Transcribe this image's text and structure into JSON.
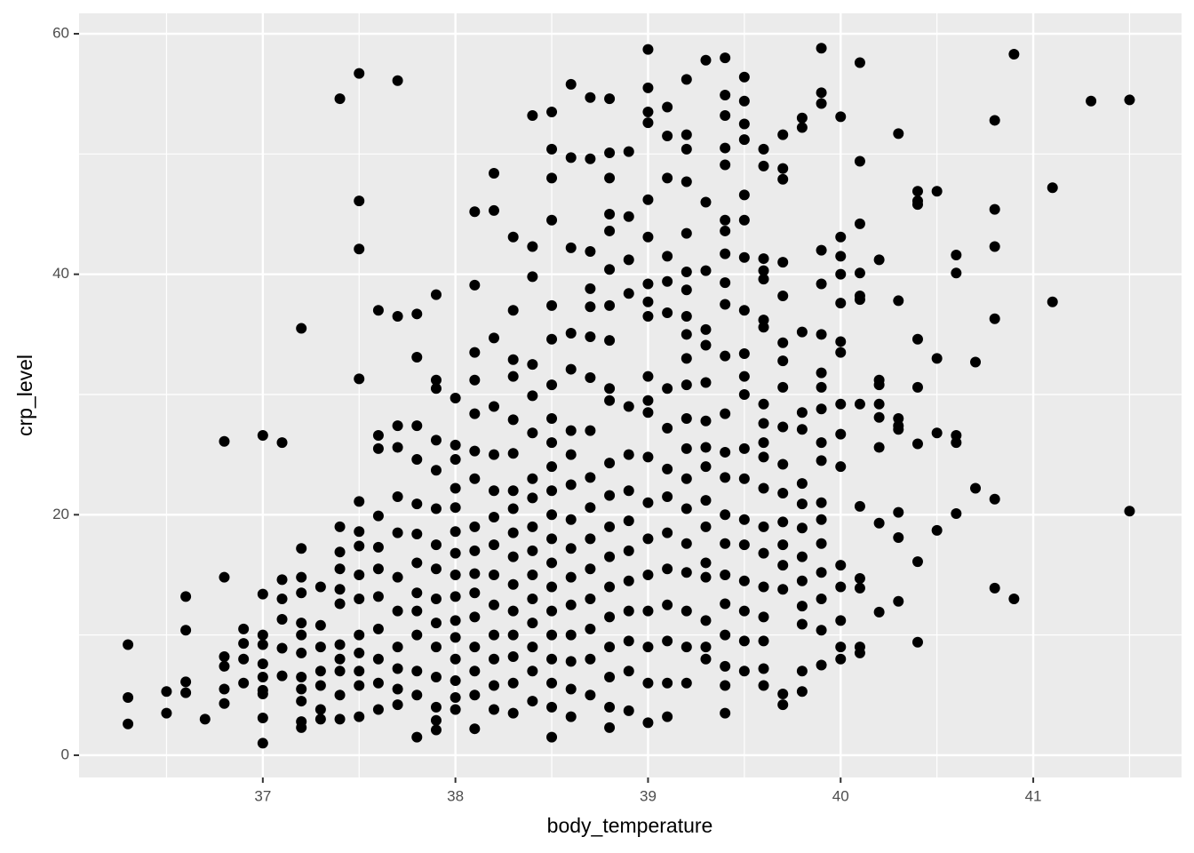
{
  "chart_data": {
    "type": "scatter",
    "xlabel": "body_temperature",
    "ylabel": "crp_level",
    "xlim": [
      36.046,
      41.77
    ],
    "ylim": [
      -1.85,
      61.7
    ],
    "xticks": [
      37,
      38,
      39,
      40,
      41
    ],
    "yticks": [
      0,
      20,
      40,
      60
    ],
    "grid": true,
    "color": "#000000",
    "x": [
      36.3,
      36.3,
      36.3,
      36.5,
      36.5,
      36.6,
      36.6,
      36.6,
      36.6,
      36.7,
      36.8,
      36.8,
      36.8,
      36.8,
      36.8,
      36.8,
      36.9,
      36.9,
      36.9,
      36.9,
      37.0,
      37.0,
      37.0,
      37.0,
      37.0,
      37.0,
      37.0,
      37.0,
      37.0,
      37.0,
      37.1,
      37.1,
      37.1,
      37.1,
      37.1,
      37.1,
      37.2,
      37.2,
      37.2,
      37.2,
      37.2,
      37.2,
      37.2,
      37.2,
      37.2,
      37.2,
      37.2,
      37.2,
      37.3,
      37.3,
      37.3,
      37.3,
      37.3,
      37.3,
      37.3,
      37.4,
      37.4,
      37.4,
      37.4,
      37.4,
      37.4,
      37.4,
      37.4,
      37.4,
      37.4,
      37.4,
      37.5,
      37.5,
      37.5,
      37.5,
      37.5,
      37.5,
      37.5,
      37.5,
      37.5,
      37.5,
      37.5,
      37.5,
      37.5,
      37.5,
      37.6,
      37.6,
      37.6,
      37.6,
      37.6,
      37.6,
      37.6,
      37.6,
      37.6,
      37.6,
      37.6,
      37.7,
      37.7,
      37.7,
      37.7,
      37.7,
      37.7,
      37.7,
      37.7,
      37.7,
      37.7,
      37.7,
      37.7,
      37.8,
      37.8,
      37.8,
      37.8,
      37.8,
      37.8,
      37.8,
      37.8,
      37.8,
      37.8,
      37.8,
      37.8,
      37.8,
      37.9,
      37.9,
      37.9,
      37.9,
      37.9,
      37.9,
      37.9,
      37.9,
      37.9,
      37.9,
      37.9,
      37.9,
      37.9,
      37.9,
      37.9,
      38.0,
      38.0,
      38.0,
      38.0,
      38.0,
      38.0,
      38.0,
      38.0,
      38.0,
      38.0,
      38.0,
      38.0,
      38.0,
      38.0,
      38.0,
      38.1,
      38.1,
      38.1,
      38.1,
      38.1,
      38.1,
      38.1,
      38.1,
      38.1,
      38.1,
      38.1,
      38.1,
      38.1,
      38.1,
      38.1,
      38.1,
      38.2,
      38.2,
      38.2,
      38.2,
      38.2,
      38.2,
      38.2,
      38.2,
      38.2,
      38.2,
      38.2,
      38.2,
      38.2,
      38.2,
      38.3,
      38.3,
      38.3,
      38.3,
      38.3,
      38.3,
      38.3,
      38.3,
      38.3,
      38.3,
      38.3,
      38.3,
      38.3,
      38.3,
      38.3,
      38.3,
      38.4,
      38.4,
      38.4,
      38.4,
      38.4,
      38.4,
      38.4,
      38.4,
      38.4,
      38.4,
      38.4,
      38.4,
      38.4,
      38.4,
      38.4,
      38.4,
      38.5,
      38.5,
      38.5,
      38.5,
      38.5,
      38.5,
      38.5,
      38.5,
      38.5,
      38.5,
      38.5,
      38.5,
      38.5,
      38.5,
      38.5,
      38.5,
      38.5,
      38.5,
      38.5,
      38.5,
      38.5,
      38.6,
      38.6,
      38.6,
      38.6,
      38.6,
      38.6,
      38.6,
      38.6,
      38.6,
      38.6,
      38.6,
      38.6,
      38.6,
      38.6,
      38.6,
      38.6,
      38.7,
      38.7,
      38.7,
      38.7,
      38.7,
      38.7,
      38.7,
      38.7,
      38.7,
      38.7,
      38.7,
      38.7,
      38.7,
      38.7,
      38.7,
      38.7,
      38.8,
      38.8,
      38.8,
      38.8,
      38.8,
      38.8,
      38.8,
      38.8,
      38.8,
      38.8,
      38.8,
      38.8,
      38.8,
      38.8,
      38.8,
      38.8,
      38.8,
      38.8,
      38.8,
      38.8,
      38.9,
      38.9,
      38.9,
      38.9,
      38.9,
      38.9,
      38.9,
      38.9,
      38.9,
      38.9,
      38.9,
      38.9,
      38.9,
      38.9,
      39.0,
      39.0,
      39.0,
      39.0,
      39.0,
      39.0,
      39.0,
      39.0,
      39.0,
      39.0,
      39.0,
      39.0,
      39.0,
      39.0,
      39.0,
      39.0,
      39.0,
      39.0,
      39.0,
      39.0,
      39.1,
      39.1,
      39.1,
      39.1,
      39.1,
      39.1,
      39.1,
      39.1,
      39.1,
      39.1,
      39.1,
      39.1,
      39.1,
      39.1,
      39.1,
      39.1,
      39.2,
      39.2,
      39.2,
      39.2,
      39.2,
      39.2,
      39.2,
      39.2,
      39.2,
      39.2,
      39.2,
      39.2,
      39.2,
      39.2,
      39.2,
      39.2,
      39.2,
      39.2,
      39.2,
      39.2,
      39.3,
      39.3,
      39.3,
      39.3,
      39.3,
      39.3,
      39.3,
      39.3,
      39.3,
      39.3,
      39.3,
      39.3,
      39.3,
      39.3,
      39.3,
      39.3,
      39.4,
      39.4,
      39.4,
      39.4,
      39.4,
      39.4,
      39.4,
      39.4,
      39.4,
      39.4,
      39.4,
      39.4,
      39.4,
      39.4,
      39.4,
      39.4,
      39.4,
      39.4,
      39.4,
      39.4,
      39.4,
      39.4,
      39.5,
      39.5,
      39.5,
      39.5,
      39.5,
      39.5,
      39.5,
      39.5,
      39.5,
      39.5,
      39.5,
      39.5,
      39.5,
      39.5,
      39.5,
      39.5,
      39.5,
      39.5,
      39.5,
      39.6,
      39.6,
      39.6,
      39.6,
      39.6,
      39.6,
      39.6,
      39.6,
      39.6,
      39.6,
      39.6,
      39.6,
      39.6,
      39.6,
      39.6,
      39.6,
      39.6,
      39.6,
      39.6,
      39.7,
      39.7,
      39.7,
      39.7,
      39.7,
      39.7,
      39.7,
      39.7,
      39.7,
      39.7,
      39.7,
      39.7,
      39.7,
      39.7,
      39.7,
      39.7,
      39.7,
      39.8,
      39.8,
      39.8,
      39.8,
      39.8,
      39.8,
      39.8,
      39.8,
      39.8,
      39.8,
      39.8,
      39.8,
      39.8,
      39.8,
      39.9,
      39.9,
      39.9,
      39.9,
      39.9,
      39.9,
      39.9,
      39.9,
      39.9,
      39.9,
      39.9,
      39.9,
      39.9,
      39.9,
      39.9,
      39.9,
      39.9,
      39.9,
      40.0,
      40.0,
      40.0,
      40.0,
      40.0,
      40.0,
      40.0,
      40.0,
      40.0,
      40.0,
      40.0,
      40.0,
      40.0,
      40.0,
      40.0,
      40.1,
      40.1,
      40.1,
      40.1,
      40.1,
      40.1,
      40.1,
      40.1,
      40.1,
      40.1,
      40.1,
      40.1,
      40.2,
      40.2,
      40.2,
      40.2,
      40.2,
      40.2,
      40.2,
      40.2,
      40.3,
      40.3,
      40.3,
      40.3,
      40.3,
      40.3,
      40.3,
      40.3,
      40.4,
      40.4,
      40.4,
      40.4,
      40.4,
      40.4,
      40.4,
      40.4,
      40.5,
      40.5,
      40.5,
      40.5,
      40.6,
      40.6,
      40.6,
      40.6,
      40.6,
      40.7,
      40.7,
      40.8,
      40.8,
      40.8,
      40.8,
      40.8,
      40.8,
      40.9,
      40.9,
      41.1,
      41.1,
      41.3,
      41.5,
      41.5
    ],
    "values": [
      9.2,
      4.8,
      2.6,
      5.3,
      3.5,
      13.2,
      10.4,
      6.1,
      5.2,
      3.0,
      26.1,
      14.8,
      8.2,
      7.4,
      5.5,
      4.3,
      10.5,
      9.3,
      8.0,
      6.0,
      26.6,
      13.4,
      10.0,
      9.2,
      7.6,
      6.5,
      5.4,
      5.1,
      3.1,
      1.0,
      26.0,
      14.6,
      13.0,
      11.3,
      8.9,
      6.6,
      35.5,
      17.2,
      14.8,
      13.5,
      11.0,
      10.0,
      8.5,
      6.5,
      5.5,
      4.5,
      2.8,
      2.3,
      14.0,
      10.8,
      9.0,
      7.0,
      5.8,
      3.8,
      3.0,
      54.6,
      19.0,
      16.9,
      15.5,
      13.8,
      12.6,
      9.2,
      8.0,
      7.0,
      5.0,
      3.0,
      56.7,
      46.1,
      42.1,
      31.3,
      21.1,
      18.6,
      17.4,
      15.0,
      13.0,
      10.0,
      8.5,
      7.0,
      5.8,
      3.2,
      37.0,
      26.6,
      25.5,
      19.9,
      17.3,
      15.5,
      13.2,
      10.5,
      8.0,
      6.0,
      3.8,
      56.1,
      36.5,
      27.4,
      25.6,
      21.5,
      18.5,
      14.8,
      12.0,
      9.0,
      7.2,
      5.5,
      4.2,
      36.7,
      33.1,
      27.4,
      24.6,
      20.9,
      18.4,
      16.0,
      13.5,
      12.0,
      10.0,
      7.0,
      5.0,
      1.5,
      38.3,
      31.2,
      30.5,
      26.2,
      23.7,
      20.5,
      17.5,
      15.5,
      13.0,
      11.0,
      9.0,
      6.5,
      4.0,
      2.9,
      2.1,
      29.7,
      25.8,
      24.6,
      22.2,
      20.6,
      18.6,
      16.8,
      15.0,
      13.2,
      11.2,
      9.8,
      8.0,
      6.2,
      4.8,
      3.8,
      45.2,
      39.1,
      33.5,
      31.2,
      28.4,
      25.3,
      23.0,
      19.0,
      17.0,
      15.1,
      13.5,
      11.5,
      9.0,
      7.0,
      5.0,
      2.2,
      48.4,
      45.3,
      34.7,
      29.0,
      25.0,
      22.0,
      19.8,
      17.5,
      15.0,
      12.5,
      10.0,
      8.0,
      5.8,
      3.8,
      43.1,
      37.0,
      32.9,
      31.5,
      27.9,
      25.1,
      22.0,
      20.5,
      18.5,
      16.5,
      14.2,
      12.0,
      10.0,
      8.2,
      6.0,
      3.5,
      53.2,
      42.3,
      39.8,
      32.5,
      29.9,
      26.8,
      23.0,
      21.4,
      19.0,
      17.0,
      15.0,
      13.0,
      11.0,
      9.0,
      7.0,
      4.5,
      53.5,
      50.4,
      48.0,
      44.5,
      37.4,
      34.6,
      30.8,
      28.0,
      26.0,
      24.0,
      22.0,
      20.0,
      18.0,
      16.0,
      14.0,
      12.0,
      10.0,
      8.0,
      6.0,
      4.0,
      1.5,
      55.8,
      49.7,
      42.2,
      35.1,
      32.1,
      27.0,
      25.0,
      22.5,
      19.6,
      17.2,
      14.8,
      12.5,
      10.0,
      7.8,
      5.5,
      3.2,
      54.7,
      49.6,
      41.9,
      38.8,
      37.3,
      34.8,
      31.4,
      27.0,
      23.1,
      20.6,
      18.0,
      15.5,
      13.0,
      10.5,
      8.0,
      5.0,
      54.6,
      50.1,
      48.0,
      45.0,
      43.6,
      40.4,
      37.4,
      34.5,
      30.5,
      29.5,
      24.3,
      21.6,
      19.0,
      16.5,
      14.0,
      11.5,
      9.0,
      6.5,
      4.0,
      2.3,
      50.2,
      44.8,
      41.2,
      38.4,
      29.0,
      25.0,
      22.0,
      19.5,
      17.0,
      14.5,
      12.0,
      9.5,
      7.0,
      3.7,
      58.7,
      55.5,
      53.5,
      52.6,
      46.2,
      43.1,
      39.2,
      37.7,
      36.5,
      31.5,
      29.5,
      28.5,
      24.8,
      21.0,
      18.0,
      15.0,
      12.0,
      9.0,
      6.0,
      2.7,
      53.9,
      51.5,
      48.0,
      41.5,
      39.4,
      36.8,
      30.5,
      27.2,
      23.8,
      21.5,
      18.5,
      15.5,
      12.5,
      9.5,
      6.0,
      3.2,
      56.2,
      51.6,
      50.4,
      47.7,
      43.4,
      40.2,
      38.7,
      36.5,
      35.0,
      33.0,
      30.8,
      28.0,
      25.5,
      23.0,
      20.5,
      17.6,
      15.2,
      12.0,
      9.0,
      6.0,
      57.8,
      46.0,
      40.3,
      35.4,
      34.1,
      31.0,
      27.8,
      25.6,
      24.0,
      21.2,
      19.0,
      16.0,
      14.8,
      11.2,
      9.0,
      8.0,
      58.0,
      54.9,
      53.2,
      50.5,
      49.1,
      44.5,
      43.6,
      41.7,
      39.3,
      37.5,
      33.2,
      28.4,
      25.2,
      23.1,
      20.0,
      17.6,
      15.0,
      12.6,
      10.0,
      7.4,
      5.8,
      3.5,
      56.4,
      54.4,
      52.5,
      51.2,
      46.6,
      44.5,
      41.4,
      37.0,
      33.4,
      31.5,
      30.0,
      25.5,
      23.0,
      19.6,
      17.5,
      14.5,
      12.0,
      9.5,
      7.0,
      50.4,
      49.0,
      41.3,
      40.3,
      39.6,
      36.2,
      35.6,
      29.2,
      27.6,
      26.0,
      24.8,
      22.2,
      19.0,
      16.8,
      14.0,
      11.5,
      9.5,
      7.2,
      5.8,
      51.6,
      48.8,
      47.9,
      41.0,
      38.2,
      34.3,
      32.8,
      30.6,
      27.3,
      24.2,
      21.8,
      19.4,
      17.5,
      15.8,
      13.8,
      5.1,
      4.2,
      53.0,
      52.2,
      35.2,
      28.5,
      27.1,
      22.6,
      20.9,
      18.9,
      16.5,
      14.5,
      12.4,
      10.9,
      7.0,
      5.3,
      58.8,
      55.1,
      54.2,
      42.0,
      39.2,
      35.0,
      31.8,
      30.6,
      28.8,
      26.0,
      24.5,
      21.0,
      19.6,
      17.6,
      15.2,
      13.0,
      10.4,
      7.5,
      53.1,
      43.1,
      41.5,
      40.0,
      37.6,
      34.4,
      33.5,
      29.2,
      26.7,
      24.0,
      15.8,
      14.0,
      11.2,
      9.0,
      8.0,
      57.6,
      49.4,
      44.2,
      40.1,
      38.2,
      37.9,
      29.2,
      20.7,
      14.7,
      13.9,
      9.0,
      8.5,
      41.2,
      31.2,
      30.8,
      29.2,
      28.1,
      25.6,
      19.3,
      11.9,
      51.7,
      37.8,
      28.0,
      27.4,
      27.1,
      20.2,
      18.1,
      12.8,
      46.9,
      46.1,
      45.8,
      34.6,
      30.6,
      25.9,
      16.1,
      9.4,
      46.9,
      33.0,
      26.8,
      18.7,
      41.6,
      40.1,
      26.6,
      26.0,
      20.1,
      32.7,
      22.2,
      52.8,
      45.4,
      42.3,
      36.3,
      21.3,
      13.9,
      58.3,
      13.0,
      47.2,
      37.7,
      54.4,
      54.5,
      20.3
    ]
  }
}
